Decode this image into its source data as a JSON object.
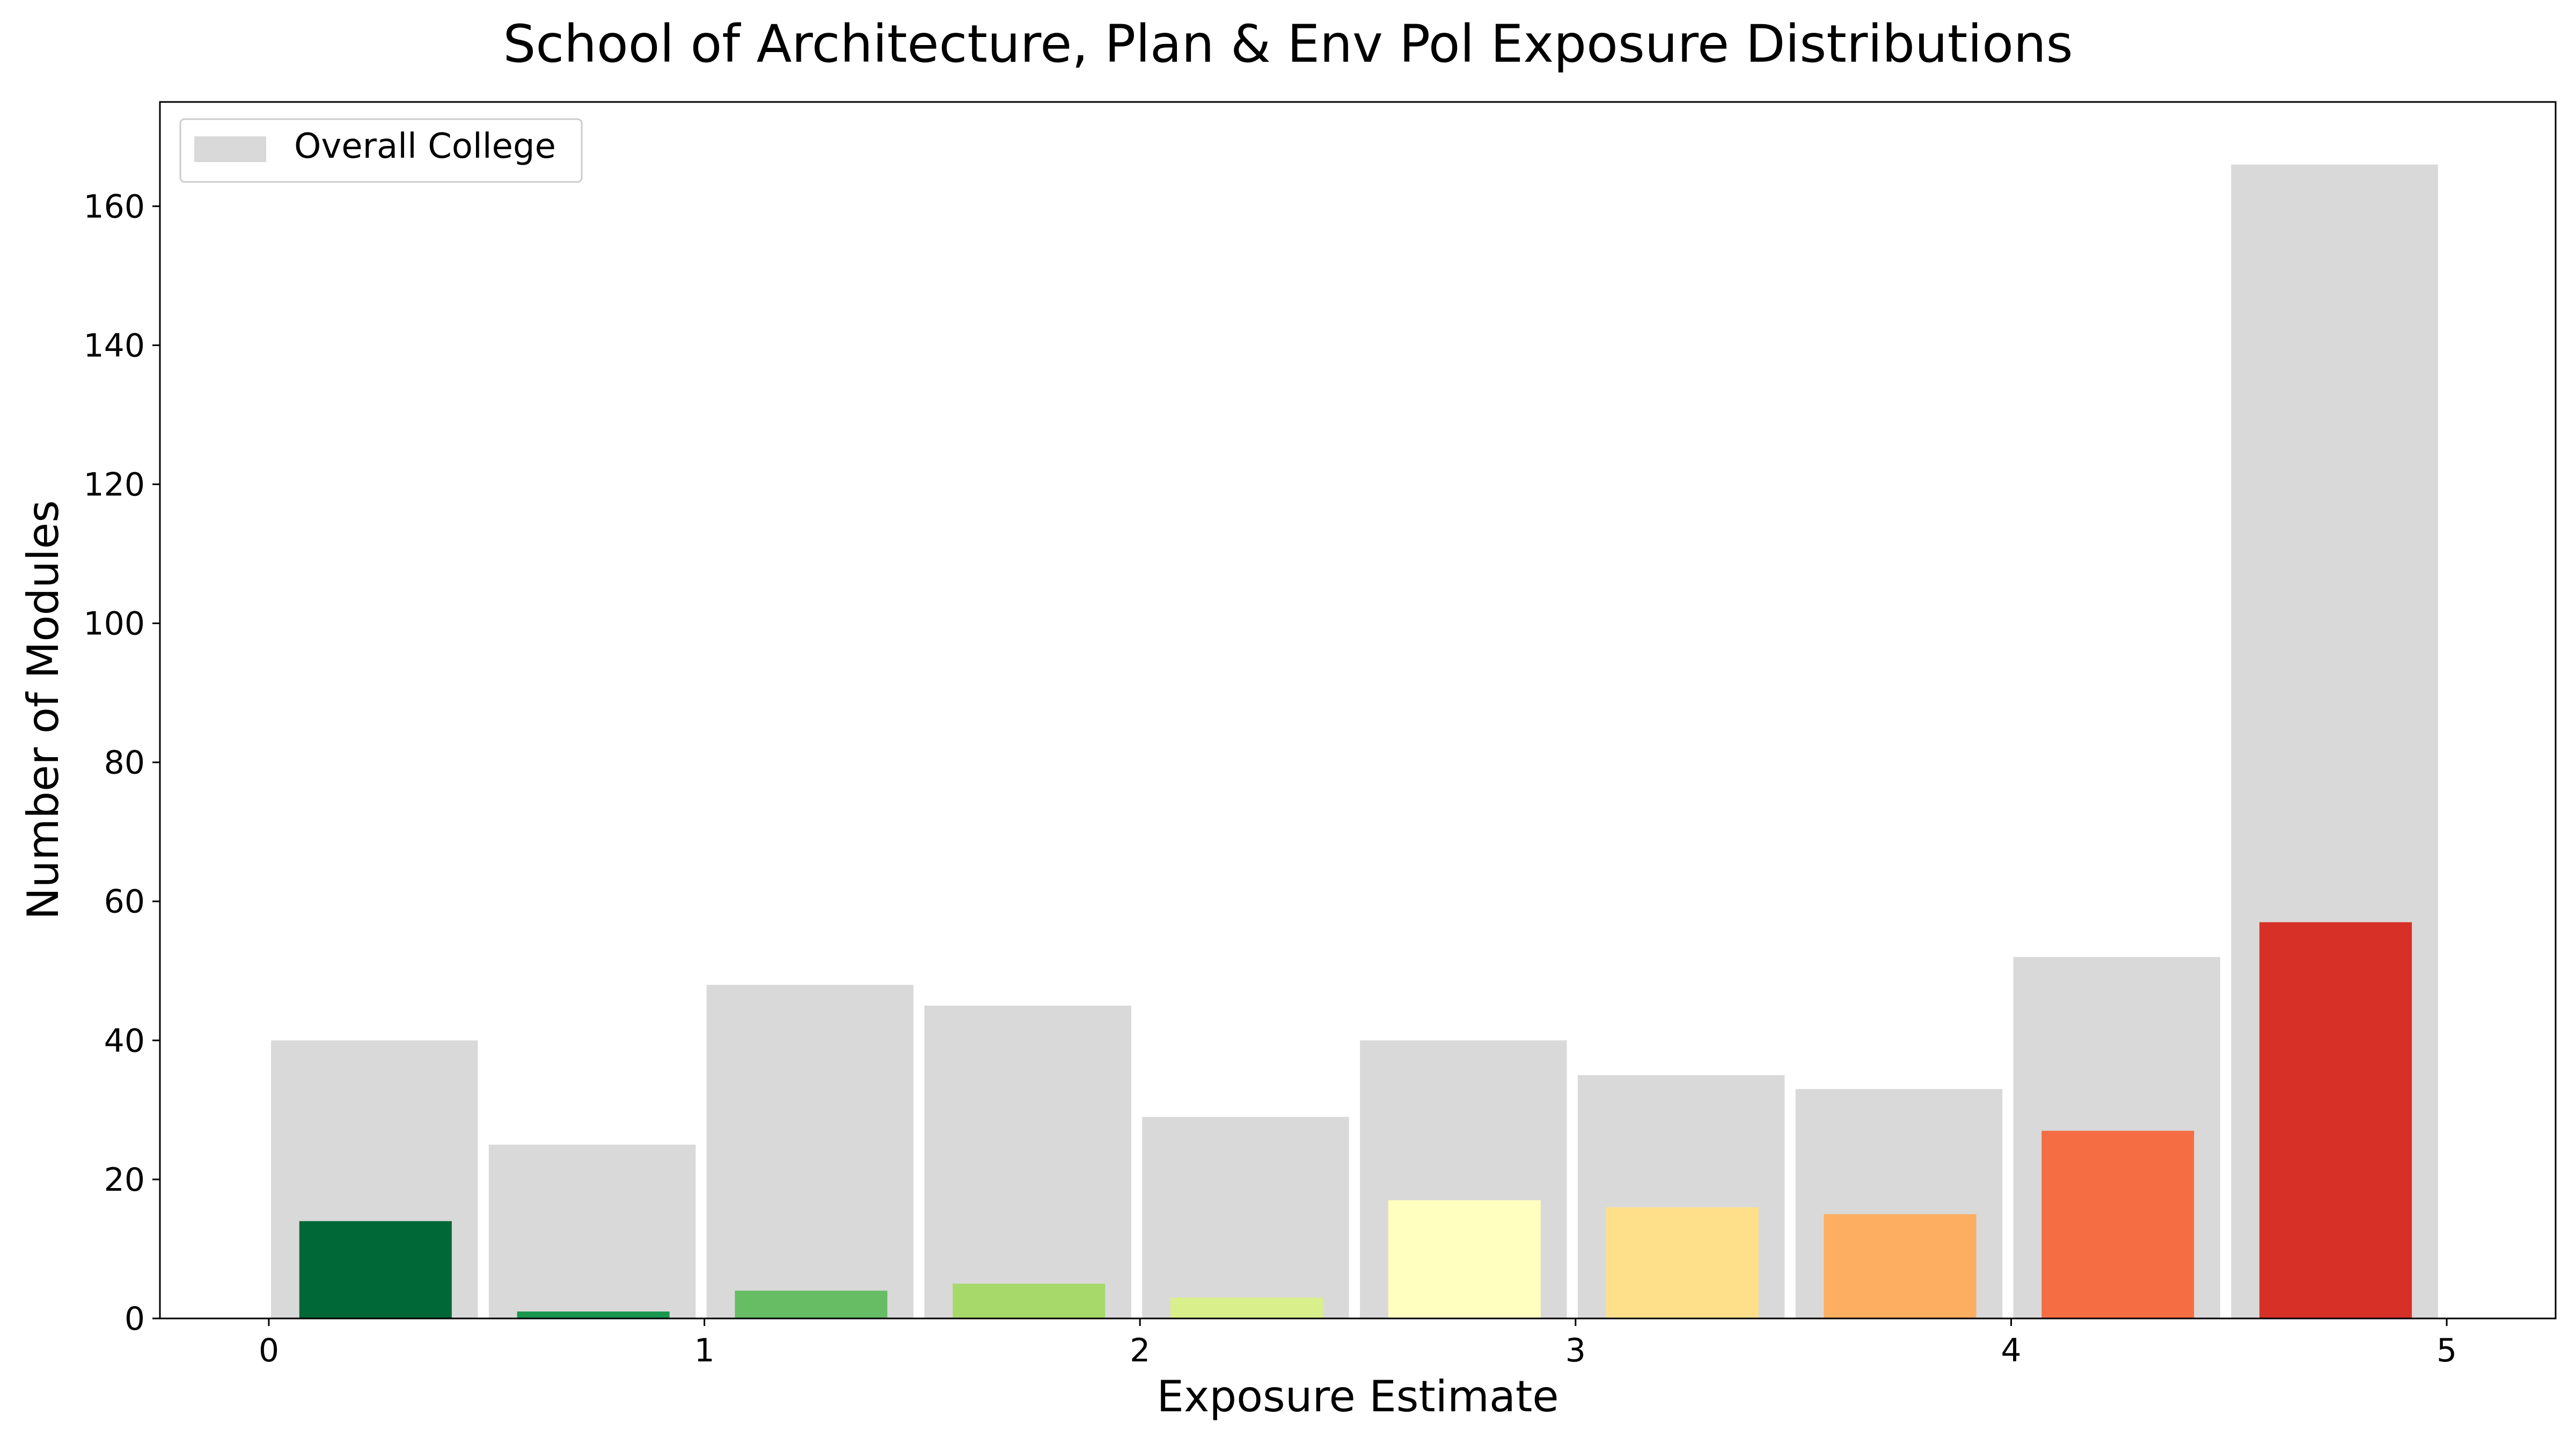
{
  "chart_data": {
    "type": "bar",
    "title": "School of Architecture, Plan & Env Pol Exposure Distributions",
    "xlabel": "Exposure Estimate",
    "ylabel": "Number of Modules",
    "xlim": [
      -0.25,
      5.25
    ],
    "ylim": [
      0,
      175
    ],
    "xticks": [
      0,
      1,
      2,
      3,
      4,
      5
    ],
    "yticks": [
      0,
      20,
      40,
      60,
      80,
      100,
      120,
      140,
      160
    ],
    "bin_edges": [
      0,
      0.5,
      1,
      1.5,
      2,
      2.5,
      3,
      3.5,
      4,
      4.5,
      5
    ],
    "legend": {
      "position": "top-left",
      "entries": [
        "Overall College"
      ]
    },
    "grid": false,
    "series": [
      {
        "name": "Overall College",
        "color": "#d9d9d9",
        "values": [
          40,
          25,
          48,
          45,
          29,
          40,
          35,
          33,
          52,
          166
        ]
      },
      {
        "values": [
          14,
          1,
          4,
          5,
          3,
          17,
          16,
          15,
          27,
          57
        ],
        "colors": [
          "#006837",
          "#1a9850",
          "#66bd63",
          "#a6d96a",
          "#d9ef8b",
          "#ffffbf",
          "#fee08b",
          "#fdae61",
          "#f46d43",
          "#d73027"
        ]
      }
    ]
  }
}
